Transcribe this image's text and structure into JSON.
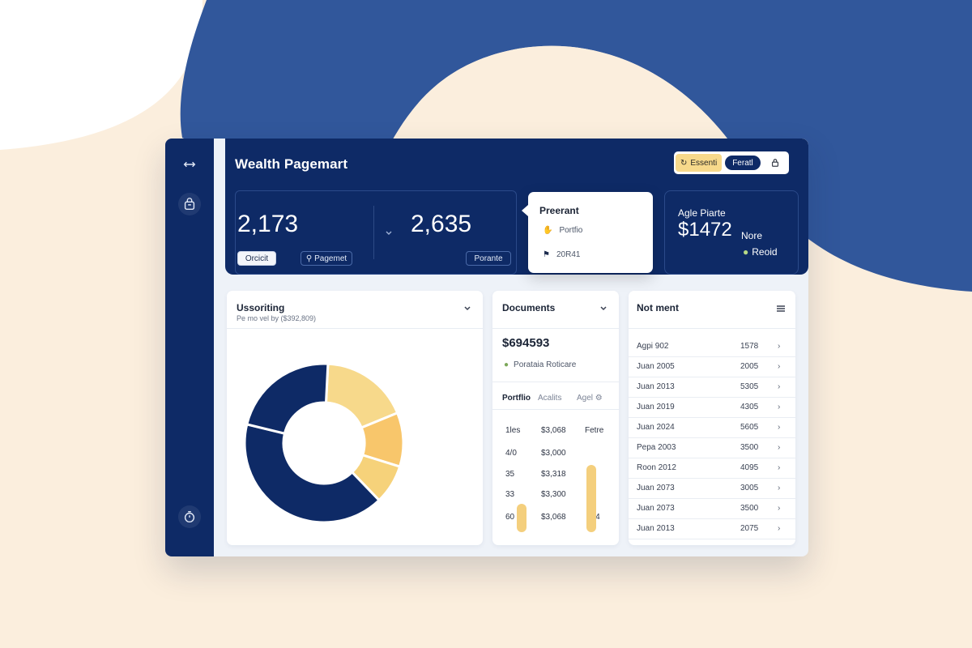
{
  "app": {
    "title": "Wealth Pagemart"
  },
  "top_actions": {
    "chip_yellow": "Essenti",
    "chip_dark": "Feratl"
  },
  "stats": {
    "value_1": "2,173",
    "value_2": "2,635",
    "pill_1": "Orcicit",
    "pill_2": "Pagemet",
    "pill_3": "Porante"
  },
  "popover": {
    "title": "Preerant",
    "row_1": "Portfio",
    "row_2": "20R41"
  },
  "asset": {
    "label": "Agle Piarte",
    "value": "$1472",
    "more": "Nore",
    "read": "Reoid"
  },
  "donut_panel": {
    "title": "Ussoriting",
    "subtitle": "Pe mo vel by ($392,809)",
    "segments": [
      {
        "value": 18,
        "color": "#f7d98b"
      },
      {
        "value": 11,
        "color": "#f8c66b"
      },
      {
        "value": 8,
        "color": "#f6d27a"
      },
      {
        "value": 41,
        "color": "#0e2a66"
      },
      {
        "value": 22,
        "color": "#0e2a66"
      }
    ]
  },
  "documents": {
    "title": "Documents",
    "value": "$694593",
    "sub": "Porataia Roticare",
    "tabs": [
      "Portflio",
      "Acalits",
      "Agel"
    ],
    "col_labels": [
      "1les",
      "$3,068",
      "Fetre"
    ],
    "rows": [
      {
        "a": "4/0",
        "b": "$3,000"
      },
      {
        "a": "35",
        "b": "$3,318"
      },
      {
        "a": "33",
        "b": "$3,300"
      },
      {
        "a": "60",
        "b": "$3,068",
        "c": "004"
      }
    ],
    "bar_levels": [
      0.32,
      0.75
    ]
  },
  "list_panel": {
    "title": "Not ment",
    "rows": [
      {
        "label": "Agpi 902",
        "value": "1578"
      },
      {
        "label": "Juan 2005",
        "value": "2005"
      },
      {
        "label": "Juan 2013",
        "value": "5305"
      },
      {
        "label": "Juan 2019",
        "value": "4305"
      },
      {
        "label": "Juan 2024",
        "value": "5605"
      },
      {
        "label": "Pepa 2003",
        "value": "3500"
      },
      {
        "label": "Roon 2012",
        "value": "4095"
      },
      {
        "label": "Juan 2073",
        "value": "3005"
      },
      {
        "label": "Juan 2073",
        "value": "3500"
      },
      {
        "label": "Juan 2013",
        "value": "2075"
      }
    ]
  },
  "colors": {
    "navy": "#0e2a66",
    "gold": "#f7d98b",
    "background": "#fbeedd",
    "blob": "#31579b"
  },
  "icons": [
    "expand-arrows-icon",
    "bag-icon",
    "timer-icon",
    "lock-icon",
    "chevron-down-icon",
    "menu-lines-icon"
  ]
}
